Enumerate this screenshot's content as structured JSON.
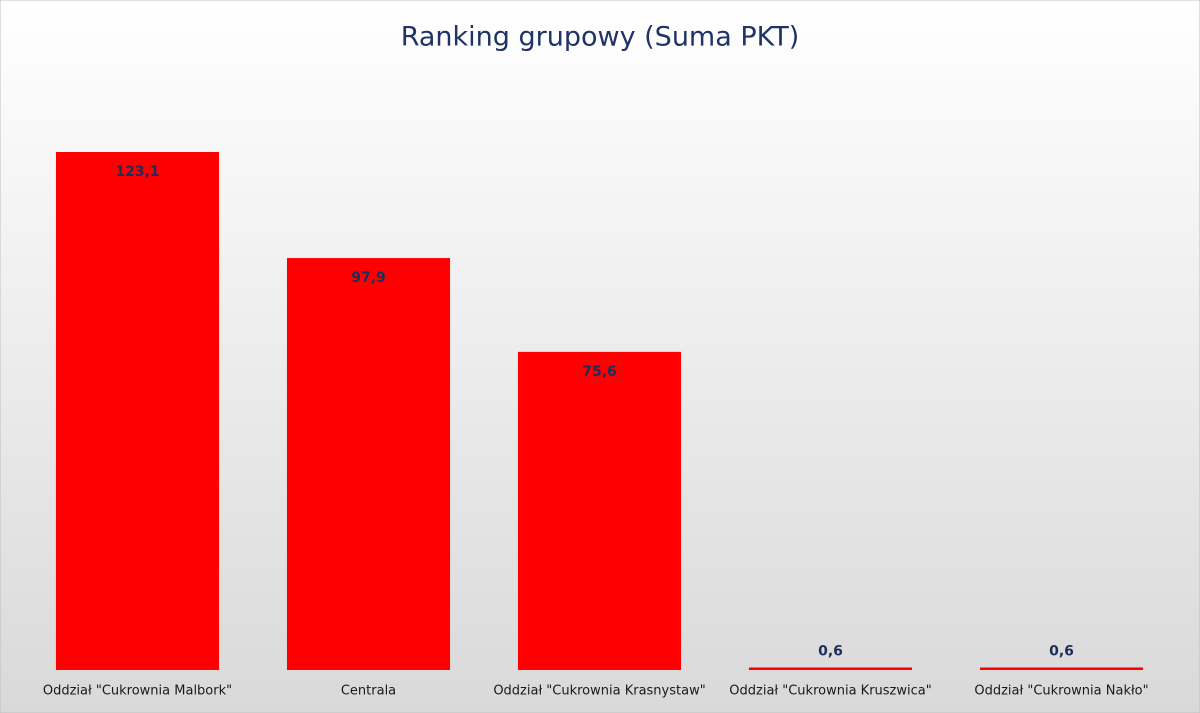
{
  "chart_data": {
    "type": "bar",
    "title": "Ranking grupowy (Suma PKT)",
    "categories": [
      "Oddział \"Cukrownia Malbork\"",
      "Centrala",
      "Oddział \"Cukrownia Krasnystaw\"",
      "Oddział \"Cukrownia Kruszwica\"",
      "Oddział \"Cukrownia Nakło\""
    ],
    "values": [
      123.1,
      97.9,
      75.6,
      0.6,
      0.6
    ],
    "value_labels": [
      "123,1",
      "97,9",
      "75,6",
      "0,6",
      "0,6"
    ],
    "color": "#ff0000"
  }
}
